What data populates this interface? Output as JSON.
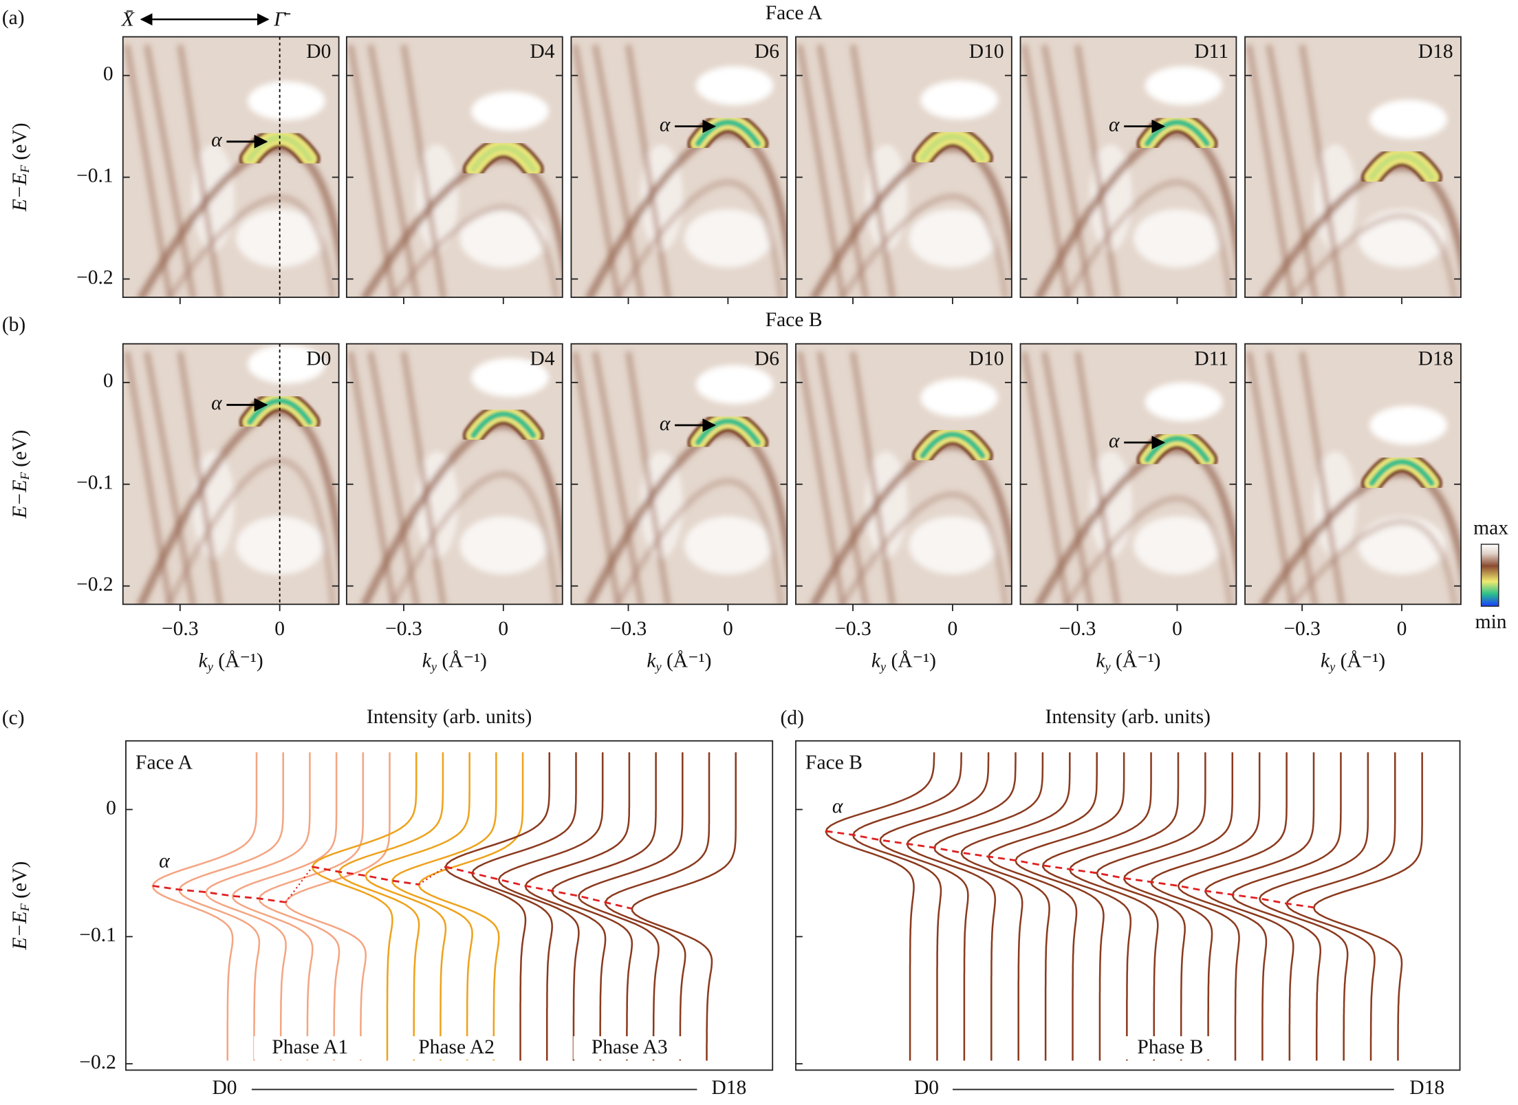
{
  "labels": {
    "x_bar": "X̄",
    "gamma_bar": "Γ̄"
  },
  "arpes": {
    "elim": [
      -0.218,
      0.038
    ],
    "eticks": [
      0,
      {
        "value": -0.1,
        "label": "−0.1"
      },
      {
        "value": -0.2,
        "label": "−0.2"
      }
    ],
    "klim": [
      -0.472,
      0.178
    ],
    "kticks": [
      {
        "value": -0.3,
        "label": "−0.3"
      },
      0
    ],
    "y_label": {
      "main": "E−E",
      "sub": "F",
      "unit": " (eV)"
    },
    "x_label": {
      "main": "k",
      "sub": "y",
      "unit": " (Å⁻¹)"
    },
    "colorbar": {
      "max": "max",
      "min": "min"
    },
    "rows": [
      {
        "tag": "(a)",
        "title": "Face A",
        "panels": [
          {
            "label": "D0",
            "alpha": "α"
          },
          {
            "label": "D4"
          },
          {
            "label": "D6",
            "alpha": "α"
          },
          {
            "label": "D10"
          },
          {
            "label": "D11",
            "alpha": "α"
          },
          {
            "label": "D18"
          }
        ]
      },
      {
        "tag": "(b)",
        "title": "Face B",
        "panels": [
          {
            "label": "D0",
            "alpha": "α"
          },
          {
            "label": "D4"
          },
          {
            "label": "D6",
            "alpha": "α"
          },
          {
            "label": "D10"
          },
          {
            "label": "D11",
            "alpha": "α"
          },
          {
            "label": "D18"
          }
        ]
      }
    ]
  },
  "edc": {
    "ylim": [
      -0.205,
      0.054
    ],
    "yticks": [
      0,
      {
        "value": -0.1,
        "label": "−0.1"
      },
      {
        "value": -0.2,
        "label": "−0.2"
      }
    ],
    "x_label": "Intensity (arb. units)",
    "start": "D0",
    "end": "D18",
    "alpha": "α",
    "faces": [
      {
        "tag": "(c)",
        "name": "Face A",
        "phases": [
          {
            "name": "Phase A1",
            "color": "#f4a582",
            "peak_energy": [
              -0.06,
              -0.063,
              -0.065,
              -0.068,
              -0.07,
              -0.073
            ]
          },
          {
            "name": "Phase A2",
            "color": "#eea21c",
            "peak_energy": [
              -0.045,
              -0.049,
              -0.052,
              -0.056,
              -0.059
            ]
          },
          {
            "name": "Phase A3",
            "color": "#8b3a1e",
            "peak_energy": [
              -0.045,
              -0.05,
              -0.055,
              -0.06,
              -0.064,
              -0.068,
              -0.073,
              -0.078
            ]
          }
        ]
      },
      {
        "tag": "(d)",
        "name": "Face B",
        "phases": [
          {
            "name": "Phase B",
            "color": "#8b3a1e",
            "peak_energy": [
              -0.017,
              -0.02,
              -0.024,
              -0.027,
              -0.03,
              -0.034,
              -0.037,
              -0.04,
              -0.044,
              -0.047,
              -0.05,
              -0.054,
              -0.057,
              -0.06,
              -0.064,
              -0.067,
              -0.07,
              -0.074,
              -0.077
            ]
          }
        ]
      }
    ]
  }
}
